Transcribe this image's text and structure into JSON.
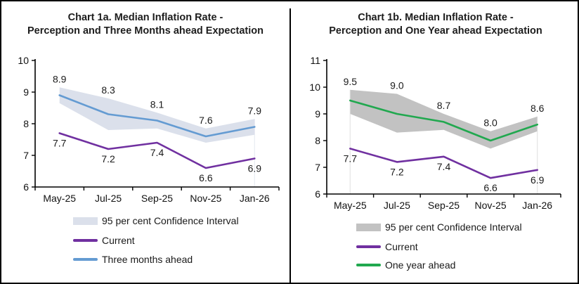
{
  "background": "#ffffff",
  "frame": {
    "border_color": "#000000",
    "divider_color": "#000000"
  },
  "chart_data": [
    {
      "type": "line",
      "title_line1": "Chart 1a. Median Inflation Rate -",
      "title_line2": "Perception and Three Months ahead Expectation",
      "categories": [
        "May-25",
        "Jul-25",
        "Sep-25",
        "Nov-25",
        "Jan-26"
      ],
      "xlabel": "",
      "ylabel": "",
      "ylim": [
        6,
        10
      ],
      "yticks": [
        "6",
        "7",
        "8",
        "9",
        "10"
      ],
      "grid": false,
      "legend_position": "bottom",
      "confidence_band": {
        "label": "95 per cent Confidence Interval",
        "fill": "#dbe0eb",
        "upper": [
          9.15,
          8.8,
          8.35,
          7.85,
          8.15
        ],
        "lower": [
          8.65,
          7.8,
          7.85,
          7.4,
          7.65
        ]
      },
      "drop_line_categories": [
        4
      ],
      "drop_line_color": "#e0e4ee",
      "series": [
        {
          "name": "Current",
          "color": "#7030a0",
          "values": [
            7.7,
            7.2,
            7.4,
            6.6,
            6.9
          ],
          "labels": [
            "7.7",
            "7.2",
            "7.4",
            "6.6",
            "6.9"
          ],
          "label_position": "below",
          "has_band": false
        },
        {
          "name": "Three months ahead",
          "color": "#649bd2",
          "values": [
            8.9,
            8.3,
            8.1,
            7.6,
            7.9
          ],
          "labels": [
            "8.9",
            "8.3",
            "8.1",
            "7.6",
            "7.9"
          ],
          "label_position": "above_band",
          "has_band": true
        }
      ],
      "legend": [
        {
          "label": "95 per cent Confidence Interval",
          "swatch": "band",
          "color": "#dbe0eb"
        },
        {
          "label": "Current",
          "swatch": "line",
          "color": "#7030a0"
        },
        {
          "label": "Three months ahead",
          "swatch": "line",
          "color": "#649bd2"
        }
      ]
    },
    {
      "type": "line",
      "title_line1": "Chart 1b. Median Inflation Rate -",
      "title_line2": "Perception and One Year ahead Expectation",
      "categories": [
        "May-25",
        "Jul-25",
        "Sep-25",
        "Nov-25",
        "Jan-26"
      ],
      "xlabel": "",
      "ylabel": "",
      "ylim": [
        6,
        11
      ],
      "yticks": [
        "6",
        "7",
        "8",
        "9",
        "10",
        "11"
      ],
      "grid": false,
      "legend_position": "bottom",
      "confidence_band": {
        "label": "95 per cent Confidence Interval",
        "fill": "#c2c2c2",
        "upper": [
          9.9,
          9.75,
          9.0,
          8.35,
          8.9
        ],
        "lower": [
          9.0,
          8.3,
          8.4,
          7.7,
          8.35
        ]
      },
      "drop_line_categories": [
        0,
        4
      ],
      "drop_line_color": "#dadada",
      "series": [
        {
          "name": "Current",
          "color": "#7030a0",
          "values": [
            7.7,
            7.2,
            7.4,
            6.6,
            6.9
          ],
          "labels": [
            "7.7",
            "7.2",
            "7.4",
            "6.6",
            "6.9"
          ],
          "label_position": "below",
          "has_band": false
        },
        {
          "name": "One year ahead",
          "color": "#21a84f",
          "values": [
            9.5,
            9.0,
            8.7,
            8.0,
            8.6
          ],
          "labels": [
            "9.5",
            "9.0",
            "8.7",
            "8.0",
            "8.6"
          ],
          "label_position": "above_band",
          "has_band": true
        }
      ],
      "legend": [
        {
          "label": "95 per cent Confidence Interval",
          "swatch": "band",
          "color": "#c2c2c2"
        },
        {
          "label": "Current",
          "swatch": "line",
          "color": "#7030a0"
        },
        {
          "label": "One year ahead",
          "swatch": "line",
          "color": "#21a84f"
        }
      ]
    }
  ]
}
